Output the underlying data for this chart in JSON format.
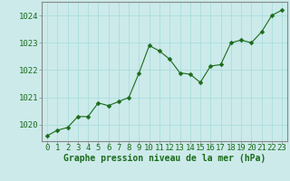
{
  "x": [
    0,
    1,
    2,
    3,
    4,
    5,
    6,
    7,
    8,
    9,
    10,
    11,
    12,
    13,
    14,
    15,
    16,
    17,
    18,
    19,
    20,
    21,
    22,
    23
  ],
  "y": [
    1019.6,
    1019.8,
    1019.9,
    1020.3,
    1020.3,
    1020.8,
    1020.7,
    1020.85,
    1021.0,
    1021.9,
    1022.9,
    1022.7,
    1022.4,
    1021.9,
    1021.85,
    1021.55,
    1022.15,
    1022.2,
    1023.0,
    1023.1,
    1023.0,
    1023.4,
    1024.0,
    1024.2
  ],
  "line_color": "#1a6b1a",
  "marker": "D",
  "marker_size": 2.5,
  "bg_color": "#cceaea",
  "grid_color": "#aadddd",
  "border_color": "#888888",
  "xlabel": "Graphe pression niveau de la mer (hPa)",
  "xlabel_color": "#1a6b1a",
  "xlabel_fontsize": 7,
  "tick_label_color": "#1a6b1a",
  "tick_label_fontsize": 6.5,
  "ylim": [
    1019.4,
    1024.5
  ],
  "yticks": [
    1020,
    1021,
    1022,
    1023,
    1024
  ],
  "xlim": [
    -0.5,
    23.5
  ],
  "xticks": [
    0,
    1,
    2,
    3,
    4,
    5,
    6,
    7,
    8,
    9,
    10,
    11,
    12,
    13,
    14,
    15,
    16,
    17,
    18,
    19,
    20,
    21,
    22,
    23
  ]
}
